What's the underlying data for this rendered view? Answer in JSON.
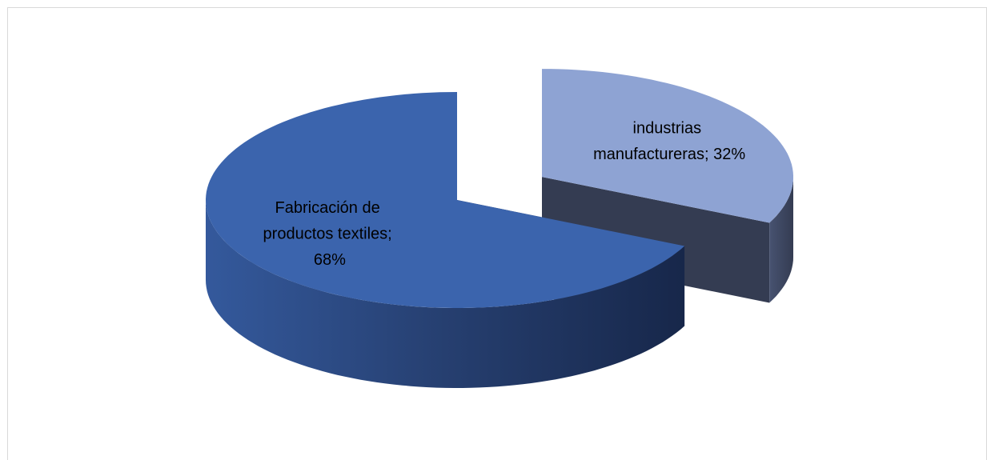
{
  "chart_data": {
    "type": "pie3d",
    "values": [
      32,
      68
    ],
    "value_labels": [
      "industrias manufactureras; 32%",
      "Fabricación de productos textiles; 68%"
    ],
    "colors": [
      "#8ea3d3",
      "#3b64ad"
    ]
  }
}
